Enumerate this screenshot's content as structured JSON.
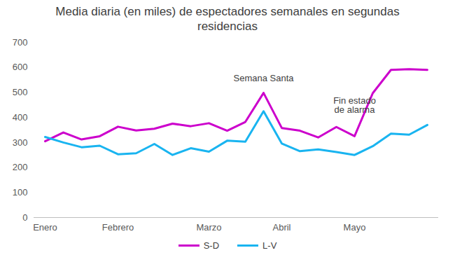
{
  "chart_data": {
    "type": "line",
    "title": "Media diaria (en miles) de espectadores semanales en segundas residencias",
    "categories": [
      "Enero",
      null,
      null,
      null,
      "Febrero",
      null,
      null,
      null,
      null,
      "Marzo",
      null,
      null,
      null,
      "Abril",
      null,
      null,
      null,
      "Mayo",
      null,
      null,
      null,
      null
    ],
    "series": [
      {
        "name": "S-D",
        "color": "#cc00cc",
        "values": [
          305,
          340,
          312,
          325,
          363,
          348,
          355,
          375,
          365,
          377,
          347,
          382,
          498,
          358,
          347,
          320,
          362,
          325,
          497,
          590,
          593,
          590
        ]
      },
      {
        "name": "L-V",
        "color": "#19b4f0",
        "values": [
          322,
          300,
          281,
          287,
          253,
          257,
          294,
          250,
          277,
          263,
          307,
          303,
          425,
          296,
          265,
          272,
          262,
          250,
          285,
          335,
          331,
          370
        ]
      }
    ],
    "annotations": [
      {
        "text": "Semana Santa",
        "x": 12,
        "y": 545
      },
      {
        "text": "Fin estado\nde alarma",
        "x": 17,
        "y": 420
      }
    ],
    "ylim": [
      0,
      700
    ],
    "yticks": [
      0,
      100,
      200,
      300,
      400,
      500,
      600,
      700
    ],
    "grid": false,
    "legend": "bottom"
  }
}
